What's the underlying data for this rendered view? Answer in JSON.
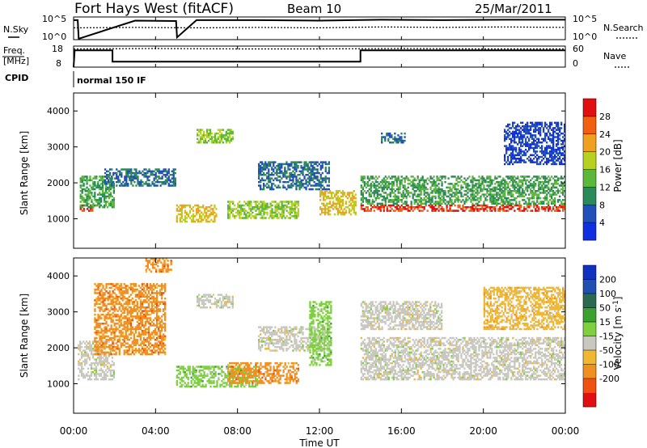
{
  "header": {
    "station": "Fort Hays West (fitACF)",
    "beam": "Beam 10",
    "date": "25/Mar/2011"
  },
  "top_panels": {
    "noise_left_label": "N.Sky",
    "noise_right_label": "N.Search",
    "noise_ticks": [
      "10^5",
      "10^0"
    ],
    "freq_left_label_1": "Freq.",
    "freq_left_label_2": "[MHz]",
    "freq_ticks": [
      "18",
      "8"
    ],
    "nave_right_label": "Nave",
    "nave_ticks": [
      "60",
      "0"
    ],
    "cpid_label": "CPID",
    "cpid_value": "normal 150 IF"
  },
  "x_axis": {
    "title": "Time UT",
    "ticks": [
      "00:00",
      "04:00",
      "08:00",
      "12:00",
      "16:00",
      "20:00",
      "00:00"
    ],
    "hours": [
      0,
      4,
      8,
      12,
      16,
      20,
      24
    ]
  },
  "colors": {
    "power": [
      "#1030e0",
      "#2050b8",
      "#2a8a5a",
      "#5cb83a",
      "#b8d020",
      "#f0a020",
      "#f06010",
      "#e01010"
    ],
    "velocity": [
      "#e01010",
      "#f05010",
      "#f09020",
      "#f0b830",
      "#c8c8c0",
      "#7ed040",
      "#3aa030",
      "#2a6a50",
      "#2050b0",
      "#1030c0"
    ]
  },
  "chart_data": [
    {
      "type": "line",
      "name": "noise",
      "xlabel": "",
      "ylabel": "",
      "xlim": [
        0,
        24
      ],
      "series": [
        {
          "name": "N.Sky",
          "x": [
            0,
            0.2,
            0.25,
            3,
            5,
            5.05,
            6,
            9,
            12,
            15,
            18,
            21,
            24
          ],
          "y": [
            4.3,
            4.3,
            0.2,
            4.2,
            4.1,
            0.5,
            4.3,
            4.3,
            4.2,
            4.4,
            4.3,
            4.4,
            4.4
          ]
        },
        {
          "name": "N.Search",
          "x": [
            0,
            3,
            6,
            9,
            12,
            15,
            18,
            21,
            24
          ],
          "y": [
            2.6,
            2.7,
            2.6,
            2.7,
            2.6,
            2.8,
            2.7,
            2.8,
            2.7
          ]
        }
      ]
    },
    {
      "type": "line",
      "name": "frequency-nave",
      "xlim": [
        0,
        24
      ],
      "series": [
        {
          "name": "Freq.",
          "x": [
            0,
            0.05,
            1.9,
            1.9,
            14.0,
            14.0,
            24
          ],
          "y": [
            8,
            16,
            16,
            10.6,
            10.6,
            16,
            16
          ]
        },
        {
          "name": "Nave",
          "x": [
            0,
            4,
            8,
            12,
            16,
            20,
            24
          ],
          "y": [
            52,
            53,
            52,
            52,
            53,
            52,
            52
          ]
        }
      ]
    },
    {
      "type": "heatmap",
      "name": "power",
      "title": "",
      "xlabel": "Time UT",
      "ylabel": "Slant Range [km]",
      "xlim": [
        0,
        24
      ],
      "ylim": [
        180,
        4500
      ],
      "yticks": [
        1000,
        2000,
        3000,
        4000
      ],
      "colorbar": {
        "label": "Power [dB]",
        "ticks": [
          4,
          8,
          12,
          16,
          20,
          24,
          28
        ]
      },
      "bands": [
        {
          "x": [
            0.3,
            1.2
          ],
          "range": [
            1200,
            1400
          ],
          "value": 28
        },
        {
          "x": [
            0.3,
            2.0
          ],
          "range": [
            1300,
            2200
          ],
          "value": 12
        },
        {
          "x": [
            1.5,
            5.0
          ],
          "range": [
            1900,
            2400
          ],
          "value": 8
        },
        {
          "x": [
            5.0,
            7.0
          ],
          "range": [
            900,
            1400
          ],
          "value": 20
        },
        {
          "x": [
            6.0,
            7.8
          ],
          "range": [
            3100,
            3500
          ],
          "value": 16
        },
        {
          "x": [
            7.5,
            11.0
          ],
          "range": [
            1000,
            1500
          ],
          "value": 16
        },
        {
          "x": [
            9.0,
            12.5
          ],
          "range": [
            1800,
            2600
          ],
          "value": 8
        },
        {
          "x": [
            12.0,
            13.8
          ],
          "range": [
            1100,
            1800
          ],
          "value": 20
        },
        {
          "x": [
            14.0,
            24.0
          ],
          "range": [
            1200,
            1400
          ],
          "value": 28
        },
        {
          "x": [
            14.0,
            24.0
          ],
          "range": [
            1400,
            2200
          ],
          "value": 12
        },
        {
          "x": [
            15.0,
            16.2
          ],
          "range": [
            3100,
            3400
          ],
          "value": 8
        },
        {
          "x": [
            21.0,
            24.0
          ],
          "range": [
            2500,
            3700
          ],
          "value": 4
        }
      ]
    },
    {
      "type": "heatmap",
      "name": "velocity",
      "title": "",
      "xlabel": "Time UT",
      "ylabel": "Slant Range [km]",
      "xlim": [
        0,
        24
      ],
      "ylim": [
        180,
        4500
      ],
      "yticks": [
        1000,
        2000,
        3000,
        4000
      ],
      "colorbar": {
        "label": "Velocity [m s-1]",
        "ticks": [
          200,
          100,
          50,
          15,
          -15,
          -50,
          -100,
          -200
        ]
      },
      "bands": [
        {
          "x": [
            0.2,
            2.0
          ],
          "range": [
            1100,
            2200
          ],
          "value": 0
        },
        {
          "x": [
            1.0,
            4.5
          ],
          "range": [
            1800,
            3800
          ],
          "value": -80
        },
        {
          "x": [
            3.5,
            4.8
          ],
          "range": [
            4100,
            4500
          ],
          "value": -80
        },
        {
          "x": [
            5.0,
            9.0
          ],
          "range": [
            900,
            1500
          ],
          "value": 30
        },
        {
          "x": [
            7.5,
            11.0
          ],
          "range": [
            1000,
            1600
          ],
          "value": -80
        },
        {
          "x": [
            6.0,
            7.8
          ],
          "range": [
            3100,
            3500
          ],
          "value": 0
        },
        {
          "x": [
            9.0,
            12.5
          ],
          "range": [
            1900,
            2600
          ],
          "value": 0
        },
        {
          "x": [
            11.5,
            12.6
          ],
          "range": [
            1500,
            3300
          ],
          "value": 40
        },
        {
          "x": [
            14.0,
            24.0
          ],
          "range": [
            1100,
            2300
          ],
          "value": 0
        },
        {
          "x": [
            14.0,
            18.0
          ],
          "range": [
            2500,
            3300
          ],
          "value": 0
        },
        {
          "x": [
            20.0,
            24.0
          ],
          "range": [
            2500,
            3700
          ],
          "value": -40
        }
      ]
    }
  ]
}
